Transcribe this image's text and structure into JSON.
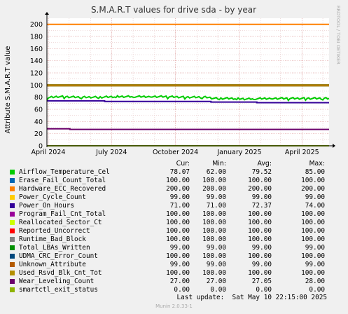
{
  "title": "S.M.A.R.T values for drive sda - by year",
  "side_label": "RRDTOOL / TOBI OETIKER",
  "legend_header": {
    "cur": "Cur:",
    "min": "Min:",
    "avg": "Avg:",
    "max": "Max:"
  },
  "last_update": "Last update:  Sat May 10 22:15:00 2025",
  "munin_version": "Munin 2.0.33-1",
  "chart_data": {
    "type": "line",
    "title": "S.M.A.R.T values for drive sda - by year",
    "ylabel": "Attribute S.M.A.R.T value",
    "xlabel": "",
    "ylim": [
      0,
      210
    ],
    "yticks": [
      0,
      20,
      40,
      60,
      80,
      100,
      120,
      140,
      160,
      180,
      200
    ],
    "x_range": [
      "2024-03-30",
      "2025-05-10"
    ],
    "xticks": [
      {
        "date": "2024-04-01",
        "label": "April 2024"
      },
      {
        "date": "2024-07-01",
        "label": "July 2024"
      },
      {
        "date": "2024-10-01",
        "label": "October 2024"
      },
      {
        "date": "2025-01-01",
        "label": "January 2025"
      },
      {
        "date": "2025-04-01",
        "label": "April 2025"
      }
    ],
    "grid": true,
    "legend_position": "bottom",
    "series": [
      {
        "name": "Airflow_Temperature_Cel",
        "color": "#00cc00",
        "cur": "78.07",
        "min": "62.00",
        "avg": "79.52",
        "max": "85.00",
        "points": [
          [
            "2024-03-30",
            79
          ],
          [
            "2024-04-15",
            81
          ],
          [
            "2024-05-15",
            80
          ],
          [
            "2024-06-15",
            80
          ],
          [
            "2024-07-10",
            81
          ],
          [
            "2024-08-15",
            81
          ],
          [
            "2024-09-15",
            81
          ],
          [
            "2024-10-15",
            80
          ],
          [
            "2024-11-15",
            80
          ],
          [
            "2024-11-25",
            78
          ],
          [
            "2024-12-20",
            78
          ],
          [
            "2025-01-10",
            77
          ],
          [
            "2025-02-10",
            78
          ],
          [
            "2025-03-10",
            78
          ],
          [
            "2025-04-10",
            78
          ],
          [
            "2025-05-10",
            78
          ]
        ]
      },
      {
        "name": "Erase_Fail_Count_Total",
        "color": "#0066b3",
        "cur": "100.00",
        "min": "100.00",
        "avg": "100.00",
        "max": "100.00",
        "value": 100
      },
      {
        "name": "Hardware_ECC_Recovered",
        "color": "#ff8000",
        "cur": "200.00",
        "min": "200.00",
        "avg": "200.00",
        "max": "200.00",
        "value": 200
      },
      {
        "name": "Power_Cycle_Count",
        "color": "#ffcc00",
        "cur": "99.00",
        "min": "99.00",
        "avg": "99.00",
        "max": "99.00",
        "value": 99
      },
      {
        "name": "Power_On_Hours",
        "color": "#330099",
        "cur": "71.00",
        "min": "71.00",
        "avg": "72.37",
        "max": "74.00",
        "points": [
          [
            "2024-03-30",
            74
          ],
          [
            "2024-06-20",
            74
          ],
          [
            "2024-06-21",
            73
          ],
          [
            "2024-11-20",
            73
          ],
          [
            "2024-11-21",
            72
          ],
          [
            "2025-01-25",
            72
          ],
          [
            "2025-01-26",
            71
          ],
          [
            "2025-05-10",
            71
          ]
        ]
      },
      {
        "name": "Program_Fail_Cnt_Total",
        "color": "#990099",
        "cur": "100.00",
        "min": "100.00",
        "avg": "100.00",
        "max": "100.00",
        "value": 100
      },
      {
        "name": "Reallocated_Sector_Ct",
        "color": "#ccff00",
        "cur": "100.00",
        "min": "100.00",
        "avg": "100.00",
        "max": "100.00",
        "value": 100
      },
      {
        "name": "Reported_Uncorrect",
        "color": "#ff0000",
        "cur": "100.00",
        "min": "100.00",
        "avg": "100.00",
        "max": "100.00",
        "value": 100
      },
      {
        "name": "Runtime_Bad_Block",
        "color": "#808080",
        "cur": "100.00",
        "min": "100.00",
        "avg": "100.00",
        "max": "100.00",
        "value": 100
      },
      {
        "name": "Total_LBAs_Written",
        "color": "#008f00",
        "cur": "99.00",
        "min": "99.00",
        "avg": "99.00",
        "max": "99.00",
        "value": 99
      },
      {
        "name": "UDMA_CRC_Error_Count",
        "color": "#00487d",
        "cur": "100.00",
        "min": "100.00",
        "avg": "100.00",
        "max": "100.00",
        "value": 100
      },
      {
        "name": "Unknown_Attribute",
        "color": "#b35a00",
        "cur": "99.00",
        "min": "99.00",
        "avg": "99.00",
        "max": "99.00",
        "value": 99
      },
      {
        "name": "Used_Rsvd_Blk_Cnt_Tot",
        "color": "#b38f00",
        "cur": "100.00",
        "min": "100.00",
        "avg": "100.00",
        "max": "100.00",
        "value": 100
      },
      {
        "name": "Wear_Leveling_Count",
        "color": "#6b006b",
        "cur": "27.00",
        "min": "27.00",
        "avg": "27.05",
        "max": "28.00",
        "points": [
          [
            "2024-03-30",
            28
          ],
          [
            "2024-05-01",
            28
          ],
          [
            "2024-05-02",
            27
          ],
          [
            "2025-05-10",
            27
          ]
        ]
      },
      {
        "name": "smartctl_exit_status",
        "color": "#8fb300",
        "cur": "0.00",
        "min": "0.00",
        "avg": "0.00",
        "max": "0.00",
        "value": 0
      }
    ]
  }
}
